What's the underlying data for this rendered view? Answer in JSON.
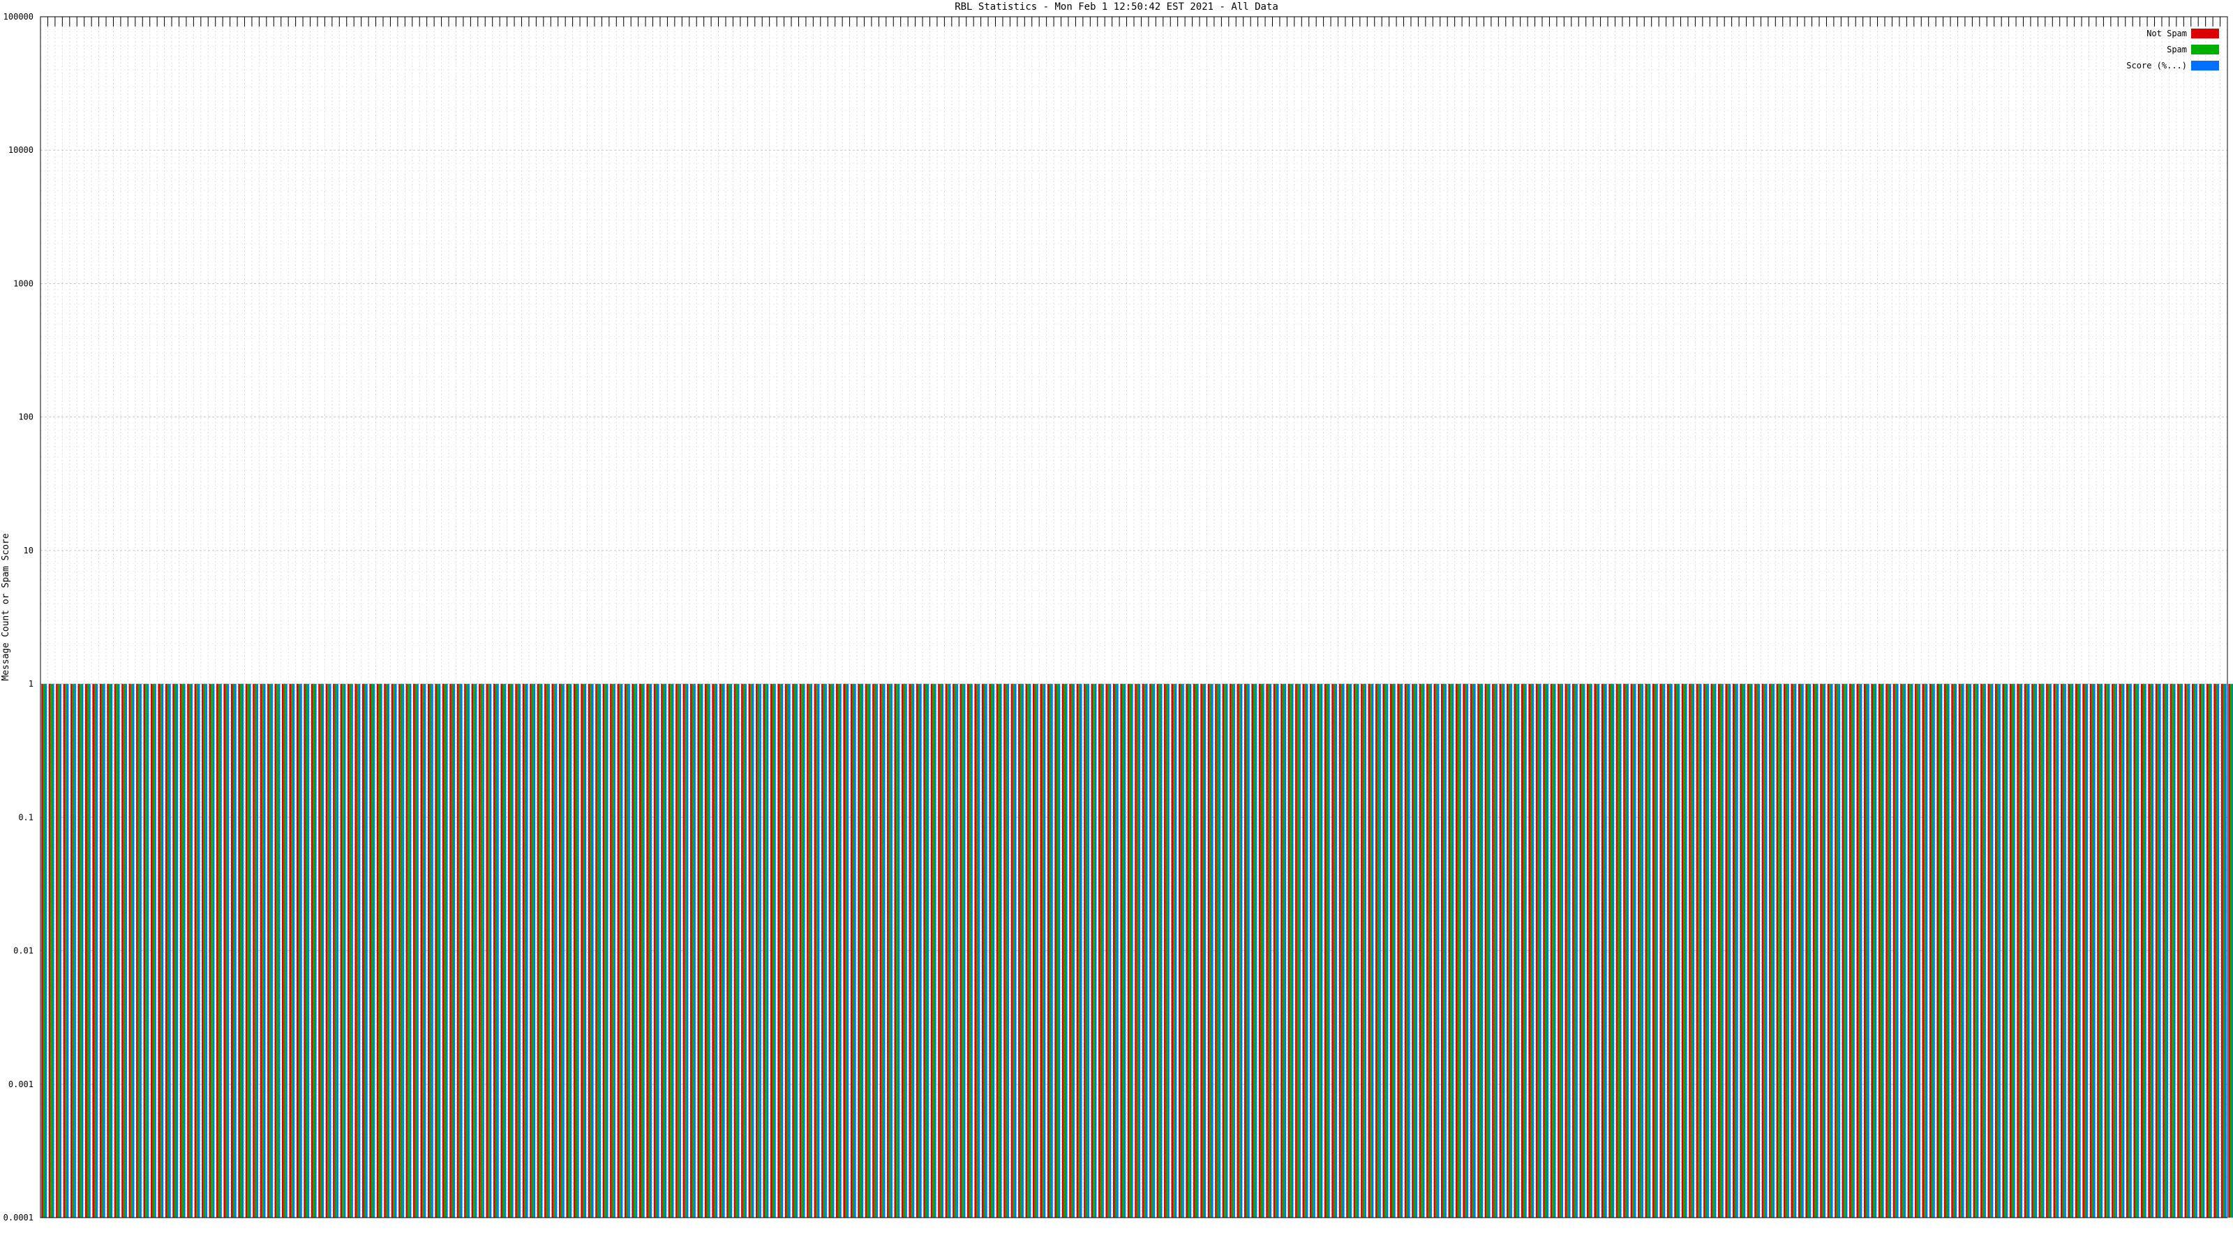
{
  "chart_data": {
    "type": "bar",
    "title": "RBL Statistics - Mon Feb  1 12:50:42 EST 2021 - All Data",
    "ylabel": "Message Count or Spam Score",
    "yscale": "log",
    "ylim": [
      0.0001,
      100000
    ],
    "yticks": [
      "0.0001",
      "0.001",
      "0.01",
      "0.1",
      "1",
      "10",
      "100",
      "1000",
      "10000",
      "100000"
    ],
    "grid": true,
    "legend_position": "top-right",
    "category_count": 300,
    "series": [
      {
        "name": "Not Spam",
        "color": "#dd0000",
        "values": [
          1,
          1,
          1,
          1,
          1,
          1,
          1,
          1,
          1,
          1,
          1,
          1,
          1,
          1,
          1,
          1,
          1,
          1,
          1,
          1,
          1,
          1,
          1,
          1,
          1,
          1,
          1,
          1,
          1,
          1,
          1,
          1,
          1,
          1,
          1,
          1,
          1,
          1,
          1,
          1,
          1,
          1,
          1,
          1,
          1,
          1,
          1,
          1,
          1,
          1,
          1,
          1,
          1,
          1,
          1,
          1,
          1,
          1,
          1,
          1,
          1,
          1,
          1,
          1,
          1,
          1,
          1,
          1,
          1,
          1,
          1,
          1,
          1,
          1,
          1,
          1,
          1,
          1,
          1,
          1,
          1,
          1,
          1,
          1,
          1,
          1,
          1,
          1,
          1,
          1,
          1,
          1,
          1,
          1,
          1,
          1,
          1,
          1,
          1,
          1,
          1,
          1,
          1,
          1,
          1,
          1,
          1,
          1,
          1,
          1,
          1,
          1,
          1,
          1,
          1,
          1,
          1,
          1,
          1,
          1,
          1,
          1,
          1,
          1,
          1,
          1,
          1,
          1,
          1,
          1,
          1,
          1,
          1,
          1,
          1,
          1,
          1,
          1,
          1,
          1,
          1,
          1,
          1,
          1,
          1,
          1,
          1,
          1,
          1,
          1,
          1,
          1,
          1,
          1,
          1,
          1,
          1,
          1,
          1,
          1,
          1,
          1,
          1,
          1,
          1,
          1,
          1,
          1,
          1,
          1,
          1,
          1,
          1,
          1,
          1,
          1,
          1,
          1,
          1,
          1,
          1,
          1,
          1,
          1,
          1,
          1,
          1,
          1,
          1,
          1,
          1,
          1,
          1,
          1,
          1,
          1,
          1,
          1,
          1,
          1,
          1,
          1,
          1,
          1,
          1,
          1,
          1,
          1,
          1,
          1,
          1,
          1,
          1,
          1,
          1,
          1,
          1,
          1,
          1,
          1,
          1,
          1,
          1,
          1,
          1,
          1,
          1,
          1,
          1,
          1,
          1,
          1,
          1,
          1,
          1,
          1,
          1,
          1,
          1,
          1,
          1,
          1,
          1,
          1,
          1,
          1,
          1,
          1,
          1,
          1,
          1,
          1,
          1,
          1,
          1,
          1,
          1,
          1,
          1,
          1,
          1,
          1,
          1,
          1,
          1,
          1,
          1,
          1,
          1,
          1,
          1,
          1,
          1,
          1,
          1,
          1,
          1,
          1,
          1,
          1,
          1,
          1,
          1,
          1,
          1,
          1,
          1,
          1,
          1,
          1,
          1,
          1,
          1,
          1,
          1,
          1,
          1,
          1,
          1,
          1,
          1,
          1,
          1,
          1,
          1,
          1,
          1,
          1,
          1,
          1,
          1,
          1,
          1,
          1,
          1,
          1,
          1,
          1,
          1,
          1,
          1,
          1,
          1,
          1,
          1,
          1,
          1,
          1
        ]
      },
      {
        "name": "Spam",
        "color": "#00b000",
        "values": [
          1,
          1,
          1,
          1,
          1,
          1,
          1,
          1,
          1,
          1,
          1,
          1,
          1,
          1,
          1,
          1,
          1,
          1,
          1,
          1,
          1,
          1,
          1,
          1,
          1,
          1,
          1,
          1,
          1,
          1,
          1,
          1,
          1,
          1,
          1,
          1,
          1,
          1,
          1,
          1,
          1,
          1,
          1,
          1,
          1,
          1,
          1,
          1,
          1,
          1,
          1,
          1,
          1,
          1,
          1,
          1,
          1,
          1,
          1,
          1,
          1,
          1,
          1,
          1,
          1,
          1,
          1,
          1,
          1,
          1,
          1,
          1,
          1,
          1,
          1,
          1,
          1,
          1,
          1,
          1,
          1,
          1,
          1,
          1,
          1,
          1,
          1,
          1,
          1,
          1,
          1,
          1,
          1,
          1,
          1,
          1,
          1,
          1,
          1,
          1,
          1,
          1,
          1,
          1,
          1,
          1,
          1,
          1,
          1,
          1,
          1,
          1,
          1,
          1,
          1,
          1,
          1,
          1,
          1,
          1,
          1,
          1,
          1,
          1,
          1,
          1,
          1,
          1,
          1,
          1,
          1,
          1,
          1,
          1,
          1,
          1,
          1,
          1,
          1,
          1,
          1,
          1,
          1,
          1,
          1,
          1,
          1,
          1,
          1,
          1,
          1,
          1,
          1,
          1,
          1,
          1,
          1,
          1,
          1,
          1,
          1,
          1,
          1,
          1,
          1,
          1,
          1,
          1,
          1,
          1,
          1,
          1,
          1,
          1,
          1,
          1,
          1,
          1,
          1,
          1,
          1,
          1,
          1,
          1,
          1,
          1,
          1,
          1,
          1,
          1,
          1,
          1,
          1,
          1,
          1,
          1,
          1,
          1,
          1,
          1,
          1,
          1,
          1,
          1,
          1,
          1,
          1,
          1,
          1,
          1,
          1,
          1,
          1,
          1,
          1,
          1,
          1,
          1,
          1,
          1,
          1,
          1,
          1,
          1,
          1,
          1,
          1,
          1,
          1,
          1,
          1,
          1,
          1,
          1,
          1,
          1,
          1,
          1,
          1,
          1,
          1,
          1,
          1,
          1,
          1,
          1,
          1,
          1,
          1,
          1,
          1,
          1,
          1,
          1,
          1,
          1,
          1,
          1,
          1,
          1,
          1,
          1,
          1,
          1,
          1,
          1,
          1,
          1,
          1,
          1,
          1,
          1,
          1,
          1,
          1,
          1,
          1,
          1,
          1,
          1,
          1,
          1,
          1,
          1,
          1,
          1,
          1,
          1,
          1,
          1,
          1,
          1,
          1,
          1,
          1,
          1,
          1,
          1,
          1,
          1,
          1,
          1,
          1,
          1,
          1,
          1,
          1,
          1,
          1,
          1,
          1,
          1,
          1,
          1,
          1,
          1,
          1,
          1,
          1,
          1,
          1,
          1,
          1,
          1,
          1,
          1,
          1,
          1
        ]
      },
      {
        "name": "Score (%...)",
        "color": "#0070ff",
        "values": [
          1,
          1,
          1,
          1,
          1,
          1,
          1,
          1,
          1,
          1,
          1,
          1,
          1,
          1,
          1,
          1,
          1,
          1,
          1,
          1,
          1,
          1,
          1,
          1,
          1,
          1,
          1,
          1,
          1,
          1,
          1,
          1,
          1,
          1,
          1,
          1,
          1,
          1,
          1,
          1,
          1,
          1,
          1,
          1,
          1,
          1,
          1,
          1,
          1,
          1,
          1,
          1,
          1,
          1,
          1,
          1,
          1,
          1,
          1,
          1,
          1,
          1,
          1,
          1,
          1,
          1,
          1,
          1,
          1,
          1,
          1,
          1,
          1,
          1,
          1,
          1,
          1,
          1,
          1,
          1,
          1,
          1,
          1,
          1,
          1,
          1,
          1,
          1,
          1,
          1,
          1,
          1,
          1,
          1,
          1,
          1,
          1,
          1,
          1,
          1,
          1,
          1,
          1,
          1,
          1,
          1,
          1,
          1,
          1,
          1,
          1,
          1,
          1,
          1,
          1,
          1,
          1,
          1,
          1,
          1,
          1,
          1,
          1,
          1,
          1,
          1,
          1,
          1,
          1,
          1,
          1,
          1,
          1,
          1,
          1,
          1,
          1,
          1,
          1,
          1,
          1,
          1,
          1,
          1,
          1,
          1,
          1,
          1,
          1,
          1,
          1,
          1,
          1,
          1,
          1,
          1,
          1,
          1,
          1,
          1,
          1,
          1,
          1,
          1,
          1,
          1,
          1,
          1,
          1,
          1,
          1,
          1,
          1,
          1,
          1,
          1,
          1,
          1,
          1,
          1,
          1,
          1,
          1,
          1,
          1,
          1,
          1,
          1,
          1,
          1,
          1,
          1,
          1,
          1,
          1,
          1,
          1,
          1,
          1,
          1,
          1,
          1,
          1,
          1,
          1,
          1,
          1,
          1,
          1,
          1,
          1,
          1,
          1,
          1,
          1,
          1,
          1,
          1,
          1,
          1,
          1,
          1,
          1,
          1,
          1,
          1,
          1,
          1,
          1,
          1,
          1,
          1,
          1,
          1,
          1,
          1,
          1,
          1,
          1,
          1,
          1,
          1,
          1,
          1,
          1,
          1,
          1,
          1,
          1,
          1,
          1,
          1,
          1,
          1,
          1,
          1,
          1,
          1,
          1,
          1,
          1,
          1,
          1,
          1,
          1,
          1,
          1,
          1,
          1,
          1,
          1,
          1,
          1,
          1,
          1,
          1,
          1,
          1,
          1,
          1,
          1,
          1,
          1,
          1,
          1,
          1,
          1,
          1,
          1,
          1,
          1,
          1,
          1,
          1,
          1,
          1,
          1,
          1,
          1,
          1,
          1,
          1,
          1,
          1,
          1,
          1,
          1,
          1,
          1,
          1,
          1,
          1,
          1,
          1,
          1,
          1,
          1,
          1,
          1,
          1,
          1,
          1,
          1,
          1,
          1,
          1,
          1,
          1
        ]
      }
    ]
  }
}
